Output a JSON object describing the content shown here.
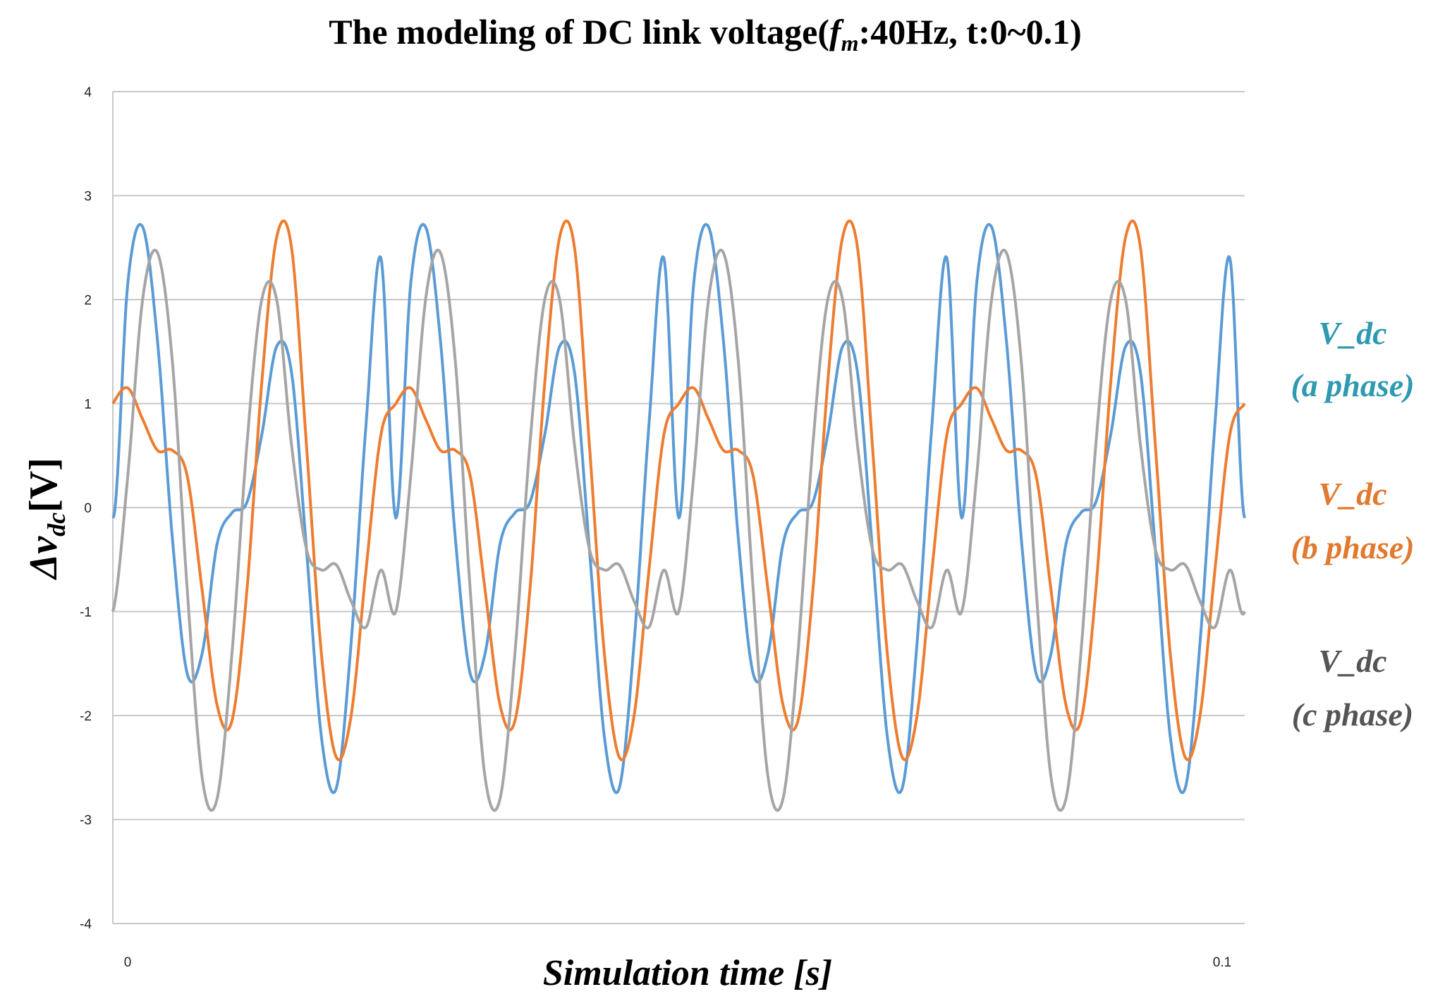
{
  "chart_data": {
    "type": "line",
    "title_prefix": "The modeling of DC link voltage(",
    "title_f": "f",
    "title_m": "m",
    "title_suffix": ":40Hz, t:0~0.1)",
    "ylabel_delta": "Δv",
    "ylabel_sub": "dc",
    "ylabel_unit": "[V]",
    "xlabel": "Simulation time [s]",
    "xlim": [
      0,
      0.1
    ],
    "ylim": [
      -4,
      4
    ],
    "x_tick_labels": [
      "0",
      "0.1"
    ],
    "y_ticks": [
      4,
      3,
      2,
      1,
      0,
      -1,
      -2,
      -3,
      -4
    ],
    "grid": true,
    "legend_position": "right",
    "series": [
      {
        "name_line1": "V_dc",
        "name_line2": "(a phase)",
        "color": "#5B9BD5",
        "legend_color": "#2E9AB0",
        "x": [
          0,
          0.0013,
          0.0026,
          0.0039,
          0.0052,
          0.0065,
          0.0078,
          0.0091,
          0.0104,
          0.0117,
          0.013,
          0.0143,
          0.0156,
          0.0169,
          0.0182,
          0.0195,
          0.0208,
          0.0221,
          0.0234,
          0.025
        ],
        "y": [
          -0.1,
          2.15,
          2.7,
          1.6,
          -0.3,
          -1.6,
          -1.4,
          -0.35,
          -0.05,
          0.05,
          0.7,
          1.55,
          1.3,
          -0.4,
          -2.2,
          -2.7,
          -1.3,
          0.8,
          2.4,
          2.7
        ]
      },
      {
        "name_line1": "V_dc",
        "name_line2": "(b phase)",
        "color": "#ED7D31",
        "legend_color": "#E07A2E",
        "x": [
          0,
          0.0013,
          0.0026,
          0.0039,
          0.0052,
          0.0065,
          0.0078,
          0.0091,
          0.0104,
          0.0117,
          0.013,
          0.0143,
          0.0156,
          0.0169,
          0.0182,
          0.0195,
          0.0208,
          0.0221,
          0.0234,
          0.025
        ],
        "y": [
          1.0,
          1.15,
          0.85,
          0.55,
          0.55,
          0.3,
          -0.8,
          -1.9,
          -2.05,
          -0.8,
          1.2,
          2.6,
          2.5,
          0.6,
          -1.4,
          -2.4,
          -2.0,
          -0.6,
          0.7,
          1.1
        ]
      },
      {
        "name_line1": "V_dc",
        "name_line2": "(c phase)",
        "color": "#A5A5A5",
        "legend_color": "#555555",
        "x": [
          0,
          0.0013,
          0.0026,
          0.0039,
          0.0052,
          0.0065,
          0.0078,
          0.0091,
          0.0104,
          0.0117,
          0.013,
          0.0143,
          0.0156,
          0.0169,
          0.0182,
          0.0195,
          0.0208,
          0.0221,
          0.0234,
          0.025
        ],
        "y": [
          -1.0,
          0.3,
          2.0,
          2.45,
          1.4,
          -0.8,
          -2.6,
          -2.8,
          -1.4,
          0.6,
          2.0,
          2.0,
          0.6,
          -0.4,
          -0.6,
          -0.55,
          -0.9,
          -1.15,
          -0.6,
          1.3
        ]
      }
    ]
  }
}
